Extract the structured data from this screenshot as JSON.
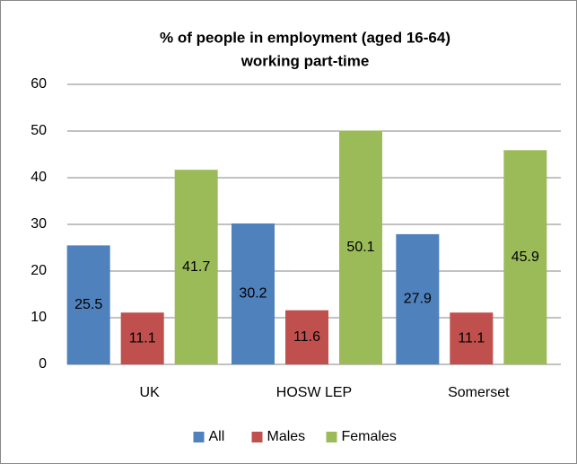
{
  "chart_data": {
    "type": "bar",
    "title": [
      "% of people in employment (aged 16-64)",
      "working part-time"
    ],
    "categories": [
      "UK",
      "HOSW LEP",
      "Somerset"
    ],
    "series": [
      {
        "name": "All",
        "color": "#4f81bd",
        "values": [
          25.5,
          30.2,
          27.9
        ]
      },
      {
        "name": "Males",
        "color": "#c0504d",
        "values": [
          11.1,
          11.6,
          11.1
        ]
      },
      {
        "name": "Females",
        "color": "#9bbb59",
        "values": [
          41.7,
          50.1,
          45.9
        ]
      }
    ],
    "ylim": [
      0,
      60
    ],
    "yticks": [
      0,
      10,
      20,
      30,
      40,
      50,
      60
    ],
    "grid": true,
    "legend": "bottom"
  }
}
